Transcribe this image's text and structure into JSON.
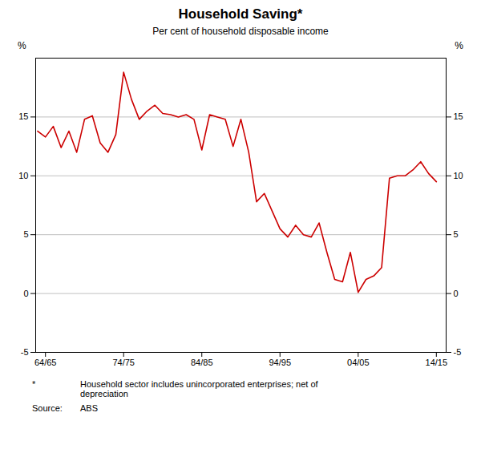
{
  "chart_data": {
    "type": "line",
    "title": "Household Saving*",
    "subtitle": "Per cent of household disposable income",
    "ylabel": "%",
    "y2label": "%",
    "footnote_marker": "*",
    "footnote": "Household sector includes unincorporated enterprises; net of\ndepreciation",
    "source_label": "Source:",
    "source": "ABS",
    "color": "#cc0000",
    "grid": true,
    "x": [
      1963.5,
      1964.5,
      1965.5,
      1966.5,
      1967.5,
      1968.5,
      1969.5,
      1970.5,
      1971.5,
      1972.5,
      1973.5,
      1974.5,
      1975.5,
      1976.5,
      1977.5,
      1978.5,
      1979.5,
      1980.5,
      1981.5,
      1982.5,
      1983.5,
      1984.5,
      1985.5,
      1986.5,
      1987.5,
      1988.5,
      1989.5,
      1990.5,
      1991.5,
      1992.5,
      1993.5,
      1994.5,
      1995.5,
      1996.5,
      1997.5,
      1998.5,
      1999.5,
      2000.5,
      2001.5,
      2002.5,
      2003.5,
      2004.5,
      2005.5,
      2006.5,
      2007.5,
      2008.5,
      2009.5,
      2010.5,
      2011.5,
      2012.5,
      2013.5,
      2014.5
    ],
    "values": [
      13.8,
      13.3,
      14.2,
      12.4,
      13.8,
      12.0,
      14.8,
      15.1,
      12.8,
      12.0,
      13.5,
      18.8,
      16.5,
      14.8,
      15.5,
      16.0,
      15.3,
      15.2,
      15.0,
      15.2,
      14.8,
      12.2,
      15.2,
      15.0,
      14.8,
      12.5,
      14.8,
      12.0,
      7.8,
      8.5,
      7.0,
      5.5,
      4.8,
      5.8,
      5.0,
      4.8,
      6.0,
      3.5,
      1.2,
      1.0,
      3.5,
      0.1,
      1.2,
      1.5,
      2.2,
      9.8,
      10.0,
      10.0,
      10.5,
      11.2,
      10.2,
      9.5
    ],
    "xlim": [
      1963.25,
      2015.75
    ],
    "xticks": [
      {
        "value": 1964.5,
        "label": "64/65"
      },
      {
        "value": 1974.5,
        "label": "74/75"
      },
      {
        "value": 1984.5,
        "label": "84/85"
      },
      {
        "value": 1994.5,
        "label": "94/95"
      },
      {
        "value": 2004.5,
        "label": "04/05"
      },
      {
        "value": 2014.5,
        "label": "14/15"
      }
    ],
    "ylim": [
      -5,
      20
    ],
    "yticks": [
      -5,
      0,
      5,
      10,
      15
    ],
    "y2lim": [
      -5,
      20
    ],
    "y2ticks": [
      -5,
      0,
      5,
      10,
      15
    ]
  }
}
